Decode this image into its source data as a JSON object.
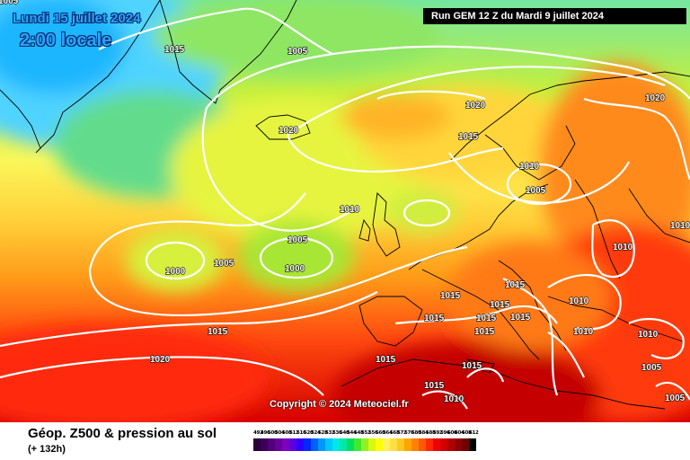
{
  "header": {
    "date_title": "Lundi 15 juillet 2024",
    "time_label": "2:00 locale",
    "run_banner": "Run GEM 12 Z du Mardi 9 juillet 2024",
    "copyright": "Copyright © 2024 Meteociel.fr"
  },
  "caption": {
    "title": "Géop. Z500 & pression au sol",
    "subtitle": "(+ 132h)"
  },
  "map": {
    "isobar_labels": [
      "1005",
      "1015",
      "1005",
      "1020",
      "1020",
      "1020",
      "1015",
      "1010",
      "1005",
      "1010",
      "1005",
      "1000",
      "1005",
      "1000",
      "1015",
      "1010",
      "1015",
      "1015",
      "1015",
      "1015",
      "1015",
      "1015",
      "1010",
      "1015",
      "1015",
      "1020",
      "1015",
      "1010",
      "1015",
      "1010",
      "1010",
      "1005",
      "1005",
      "1010"
    ]
  },
  "scale": {
    "labels": [
      "492",
      "496",
      "500",
      "504",
      "508",
      "512",
      "516",
      "520",
      "524",
      "528",
      "532",
      "536",
      "540",
      "544",
      "548",
      "552",
      "556",
      "560",
      "564",
      "568",
      "572",
      "576",
      "580",
      "584",
      "588",
      "592",
      "596",
      "600",
      "604",
      "608",
      "612"
    ],
    "colors": [
      "#2a003a",
      "#3c0058",
      "#52007a",
      "#68009c",
      "#7e00c0",
      "#5a00e0",
      "#3000ff",
      "#0028ff",
      "#0060ff",
      "#0098ff",
      "#00c8ff",
      "#00e8e8",
      "#00e8a8",
      "#00e060",
      "#40e830",
      "#90f020",
      "#d8f810",
      "#ffff00",
      "#fff060",
      "#ffe040",
      "#ffc820",
      "#ffa400",
      "#ff8200",
      "#ff5800",
      "#ff2800",
      "#f00000",
      "#d00000",
      "#b00000",
      "#900000",
      "#700000",
      "#000000"
    ]
  }
}
